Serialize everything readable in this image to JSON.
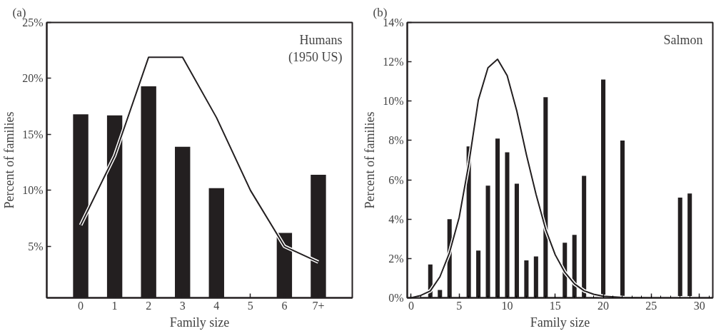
{
  "chart_data": [
    {
      "type": "bar",
      "title": "(a)",
      "xlabel": "Family size",
      "ylabel": "Percent of families",
      "categories": [
        "0",
        "1",
        "2",
        "3",
        "4",
        "5",
        "6",
        "7+"
      ],
      "series": [
        {
          "color": "#231f20",
          "values": [
            16.8,
            16.7,
            19.3,
            13.9,
            10.2,
            null,
            6.2,
            11.4
          ]
        },
        {
          "type": "line",
          "color": "#231f20",
          "values": [
            6.9,
            13.1,
            21.9,
            21.9,
            16.5,
            10.0,
            5.0,
            3.6
          ]
        }
      ],
      "ylim": [
        0.4,
        25
      ],
      "yticks": [
        {
          "value": 5,
          "label": "5%"
        },
        {
          "value": 10,
          "label": "10%"
        },
        {
          "value": 15,
          "label": "15%"
        },
        {
          "value": 20,
          "label": "20%"
        },
        {
          "value": 25,
          "label": "25%"
        }
      ],
      "annotations": [
        "Humans\n(1950 US)"
      ],
      "grid": false,
      "marker": "none",
      "line_style": "solid"
    },
    {
      "type": "bar",
      "title": "(b)",
      "xlabel": "Family size",
      "ylabel": "Percent of families",
      "series": [
        {
          "color": "#231f20",
          "x": [
            2,
            3,
            4,
            6,
            7,
            8,
            9,
            10,
            11,
            12,
            13,
            14,
            16,
            17,
            18,
            20,
            22,
            28,
            29
          ],
          "values": [
            1.7,
            0.4,
            4.0,
            7.7,
            2.4,
            5.7,
            8.1,
            7.4,
            5.8,
            1.9,
            2.1,
            10.2,
            2.8,
            3.2,
            6.2,
            11.1,
            8.0,
            5.1,
            5.3
          ]
        },
        {
          "type": "line",
          "color": "#231f20",
          "x": [
            0,
            1,
            2,
            3,
            4,
            5,
            6,
            7,
            8,
            9,
            10,
            11,
            12,
            13,
            14,
            15,
            16,
            17,
            18,
            19,
            20,
            22,
            25,
            31
          ],
          "values": [
            0,
            0.12,
            0.35,
            1.07,
            2.3,
            4.08,
            6.8,
            10.06,
            11.7,
            12.13,
            11.3,
            9.5,
            7.28,
            5.27,
            3.49,
            2.19,
            1.3,
            0.71,
            0.36,
            0.18,
            0.08,
            0.02,
            0,
            0
          ]
        }
      ],
      "xlim": [
        -0.4,
        31.4
      ],
      "xticks": [
        0,
        5,
        10,
        15,
        20,
        25,
        30
      ],
      "ylim": [
        0,
        14
      ],
      "yticks": [
        {
          "value": 0,
          "label": "0%"
        },
        {
          "value": 2,
          "label": "2%"
        },
        {
          "value": 4,
          "label": "4%"
        },
        {
          "value": 6,
          "label": "6%"
        },
        {
          "value": 8,
          "label": "8%"
        },
        {
          "value": 10,
          "label": "10%"
        },
        {
          "value": 12,
          "label": "12%"
        },
        {
          "value": 14,
          "label": "14%"
        }
      ],
      "annotations": [
        "Salmon"
      ],
      "grid": false,
      "marker": "none",
      "line_style": "solid"
    }
  ]
}
